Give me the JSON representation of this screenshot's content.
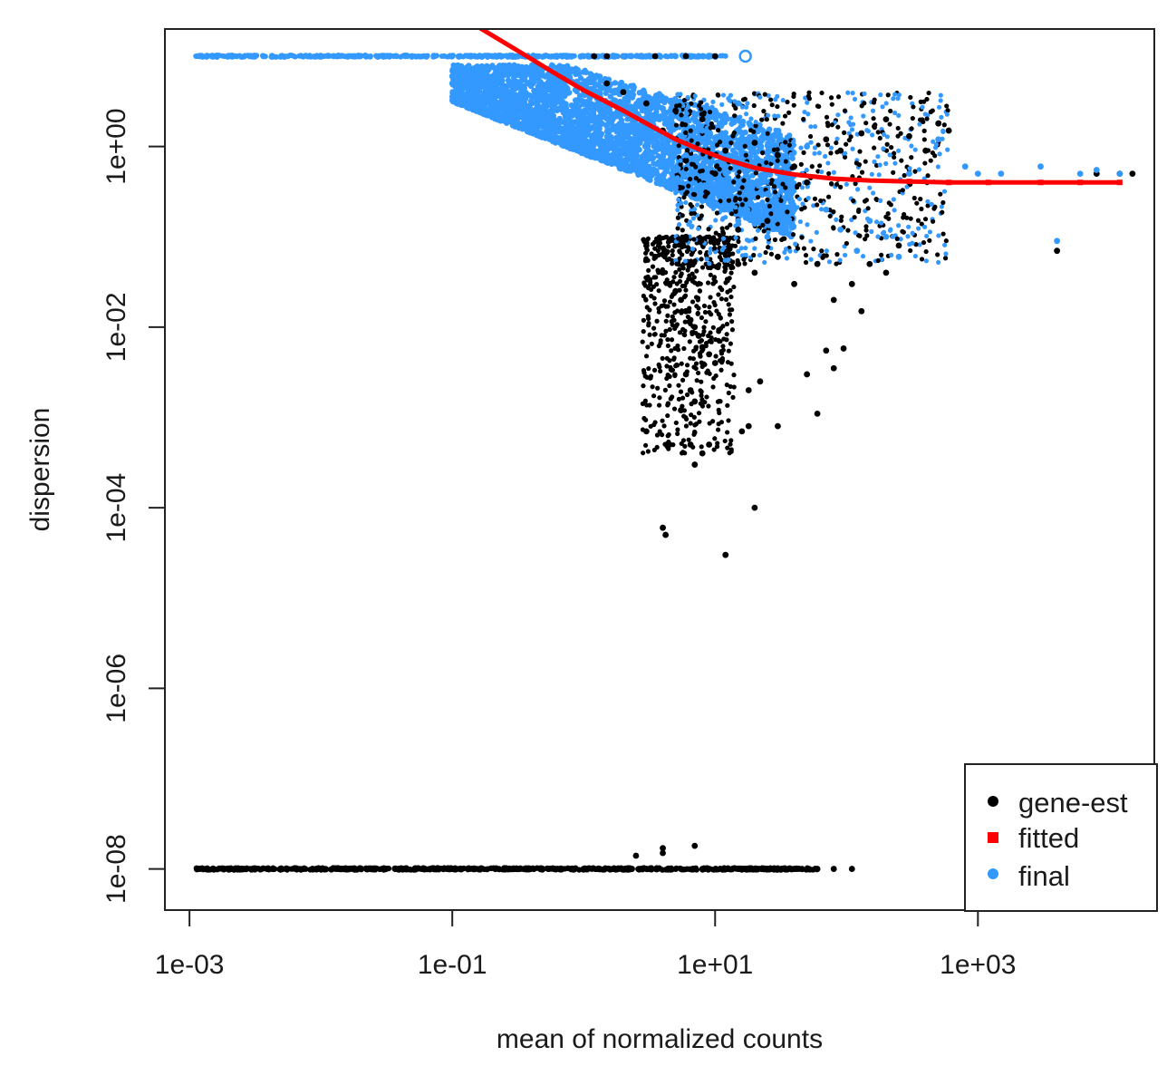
{
  "chart_data": {
    "type": "scatter",
    "xlabel": "mean of normalized counts",
    "ylabel": "dispersion",
    "x_scale": "log10",
    "y_scale": "log10",
    "xlim": [
      0.00065,
      22000
    ],
    "ylim": [
      3.5e-09,
      20
    ],
    "x_ticks": [
      {
        "value": 0.001,
        "label": "1e-03"
      },
      {
        "value": 0.1,
        "label": "1e-01"
      },
      {
        "value": 10,
        "label": "1e+01"
      },
      {
        "value": 1000,
        "label": "1e+03"
      }
    ],
    "y_ticks": [
      {
        "value": 1e-08,
        "label": "1e-08"
      },
      {
        "value": 1e-06,
        "label": "1e-06"
      },
      {
        "value": 0.0001,
        "label": "1e-04"
      },
      {
        "value": 0.01,
        "label": "1e-02"
      },
      {
        "value": 1,
        "label": "1e+00"
      }
    ],
    "grid": false,
    "legend": {
      "position": "bottom-right",
      "entries": [
        {
          "name": "gene-est",
          "color": "#000000"
        },
        {
          "name": "fitted",
          "color": "#ff0000"
        },
        {
          "name": "final",
          "color": "#3399ff"
        }
      ]
    },
    "series": [
      {
        "name": "gene-est",
        "color": "#000000",
        "points": [
          [
            0.0012,
            1e-08
          ],
          [
            0.0025,
            1e-08
          ],
          [
            0.003,
            1e-08
          ],
          [
            0.004,
            1e-08
          ],
          [
            0.01,
            1e-08
          ],
          [
            0.03,
            1e-08
          ],
          [
            0.1,
            1e-08
          ],
          [
            0.3,
            1e-08
          ],
          [
            1,
            1e-08
          ],
          [
            3,
            1e-08
          ],
          [
            8,
            1e-08
          ],
          [
            15,
            1e-08
          ],
          [
            25,
            1e-08
          ],
          [
            40,
            1e-08
          ],
          [
            60,
            1e-08
          ],
          [
            80,
            1e-08
          ],
          [
            110,
            1e-08
          ],
          [
            2.5,
            1.4e-08
          ],
          [
            4,
            1.5e-08
          ],
          [
            4,
            1.7e-08
          ],
          [
            7,
            1.8e-08
          ],
          [
            1.2,
            10
          ],
          [
            1.5,
            10
          ],
          [
            2,
            10
          ],
          [
            3.5,
            10
          ],
          [
            6,
            10
          ],
          [
            10,
            10
          ],
          [
            1.5,
            5
          ],
          [
            2,
            4
          ],
          [
            3,
            3
          ],
          [
            5,
            2.5
          ],
          [
            8,
            2
          ],
          [
            4,
            1.5
          ],
          [
            6,
            0.7
          ],
          [
            10,
            0.5
          ],
          [
            12,
            0.9
          ],
          [
            20,
            1.1
          ],
          [
            30,
            0.8
          ],
          [
            40,
            0.6
          ],
          [
            50,
            0.4
          ],
          [
            70,
            1.2
          ],
          [
            90,
            0.9
          ],
          [
            130,
            1.4
          ],
          [
            200,
            2
          ],
          [
            300,
            1.3
          ],
          [
            400,
            0.9
          ],
          [
            500,
            1.8
          ],
          [
            600,
            1.5
          ],
          [
            8000,
            0.5
          ],
          [
            12000,
            0.5
          ],
          [
            15000,
            0.5
          ],
          [
            4000,
            0.07
          ],
          [
            3,
            0.08
          ],
          [
            3.5,
            0.06
          ],
          [
            4,
            0.04
          ],
          [
            4.5,
            0.03
          ],
          [
            5,
            0.025
          ],
          [
            5.5,
            0.02
          ],
          [
            6,
            0.015
          ],
          [
            6.5,
            0.012
          ],
          [
            7,
            0.01
          ],
          [
            7.5,
            0.008
          ],
          [
            8,
            0.006
          ],
          [
            9,
            0.005
          ],
          [
            10,
            0.004
          ],
          [
            6,
            0.003
          ],
          [
            6.5,
            0.002
          ],
          [
            7,
            0.0015
          ],
          [
            5.5,
            0.0012
          ],
          [
            3,
            0.0007
          ],
          [
            4.5,
            0.0005
          ],
          [
            6.5,
            0.0005
          ],
          [
            8,
            0.0004
          ],
          [
            9,
            0.0005
          ],
          [
            7,
            0.0003
          ],
          [
            4,
            6e-05
          ],
          [
            12,
            3e-05
          ],
          [
            20,
            0.0001
          ],
          [
            16,
            0.0007
          ],
          [
            18,
            0.0008
          ],
          [
            18,
            0.002
          ],
          [
            22,
            0.0025
          ],
          [
            30,
            0.0008
          ],
          [
            50,
            0.003
          ],
          [
            60,
            0.0011
          ],
          [
            80,
            0.0035
          ],
          [
            70,
            0.0055
          ],
          [
            95,
            0.0058
          ],
          [
            4.2,
            5e-05
          ],
          [
            15,
            0.05
          ],
          [
            20,
            0.04
          ],
          [
            30,
            0.06
          ],
          [
            40,
            0.03
          ],
          [
            60,
            0.05
          ],
          [
            80,
            0.02
          ],
          [
            110,
            0.03
          ],
          [
            150,
            0.05
          ],
          [
            200,
            0.04
          ],
          [
            250,
            0.08
          ],
          [
            130,
            0.015
          ],
          [
            6,
            0.1
          ],
          [
            10,
            0.09
          ],
          [
            15,
            0.12
          ],
          [
            25,
            0.15
          ]
        ]
      },
      {
        "name": "final",
        "color": "#3399ff",
        "points": [
          [
            0.0012,
            10
          ],
          [
            0.002,
            10
          ],
          [
            0.003,
            10
          ],
          [
            0.005,
            10
          ],
          [
            0.01,
            10
          ],
          [
            0.02,
            10
          ],
          [
            0.05,
            10
          ],
          [
            0.1,
            10
          ],
          [
            0.2,
            10
          ],
          [
            0.5,
            10
          ],
          [
            1,
            10
          ],
          [
            2,
            10
          ],
          [
            3,
            10
          ],
          [
            5,
            10
          ],
          [
            8,
            10
          ],
          [
            0.1,
            6
          ],
          [
            0.2,
            4
          ],
          [
            0.3,
            3
          ],
          [
            0.5,
            2
          ],
          [
            1,
            1.2
          ],
          [
            2,
            0.7
          ],
          [
            4,
            0.4
          ],
          [
            8,
            0.25
          ],
          [
            15,
            0.15
          ],
          [
            25,
            0.1
          ],
          [
            0.1,
            5
          ],
          [
            0.3,
            2.5
          ],
          [
            0.6,
            1.5
          ],
          [
            1.2,
            0.9
          ],
          [
            2.5,
            0.55
          ],
          [
            5,
            0.35
          ],
          [
            10,
            0.22
          ],
          [
            20,
            0.14
          ],
          [
            0.4,
            6
          ],
          [
            1,
            3
          ],
          [
            3,
            1.4
          ],
          [
            6,
            0.8
          ],
          [
            12,
            0.5
          ],
          [
            25,
            0.3
          ],
          [
            40,
            0.2
          ],
          [
            8,
            1.5
          ],
          [
            10,
            2.5
          ],
          [
            15,
            3
          ],
          [
            20,
            0.6
          ],
          [
            30,
            0.4
          ],
          [
            50,
            1
          ],
          [
            70,
            0.2
          ],
          [
            90,
            0.12
          ],
          [
            120,
            0.07
          ],
          [
            150,
            0.15
          ],
          [
            200,
            0.1
          ],
          [
            250,
            0.06
          ],
          [
            300,
            0.5
          ],
          [
            500,
            1.2
          ],
          [
            800,
            0.6
          ],
          [
            1000,
            0.5
          ],
          [
            1500,
            0.5
          ],
          [
            3000,
            0.6
          ],
          [
            6000,
            0.5
          ],
          [
            8000,
            0.55
          ],
          [
            12000,
            0.5
          ],
          [
            4000,
            0.09
          ]
        ]
      },
      {
        "name": "fitted",
        "color": "#ff0000",
        "points": [
          [
            0.15,
            22
          ],
          [
            0.3,
            12
          ],
          [
            0.6,
            6.5
          ],
          [
            1,
            4.2
          ],
          [
            2,
            2.5
          ],
          [
            3,
            1.8
          ],
          [
            5,
            1.2
          ],
          [
            8,
            0.9
          ],
          [
            12,
            0.72
          ],
          [
            20,
            0.58
          ],
          [
            40,
            0.49
          ],
          [
            80,
            0.44
          ],
          [
            150,
            0.42
          ],
          [
            300,
            0.41
          ],
          [
            600,
            0.4
          ],
          [
            1200,
            0.4
          ],
          [
            3000,
            0.4
          ],
          [
            6000,
            0.4
          ],
          [
            12000,
            0.4
          ]
        ]
      }
    ],
    "point_clouds": [
      {
        "series": "final",
        "x_range": [
          0.1,
          40
        ],
        "x_density": "lower dispersion bound dispersion = 1.3 * x^-0.58 approx",
        "y_range": [
          0.08,
          8
        ]
      },
      {
        "series": "gene-est",
        "x_range": [
          2.5,
          15
        ],
        "y_range": [
          0.0008,
          0.1
        ]
      },
      {
        "series": "gene-est",
        "x_range": [
          15,
          500
        ],
        "y_range": [
          0.05,
          3
        ]
      },
      {
        "series": "final",
        "x_range": [
          15,
          300
        ],
        "y_range": [
          0.06,
          2
        ]
      }
    ]
  }
}
